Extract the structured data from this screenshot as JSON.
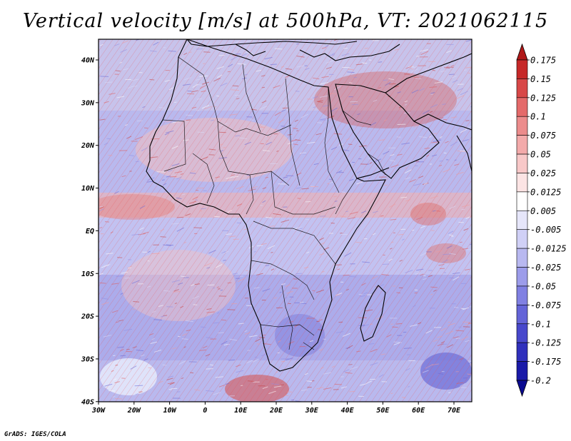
{
  "title": "Vertical velocity [m/s] at 500hPa, VT: 2021062115",
  "footer": "GrADS: IGES/COLA",
  "map": {
    "lat_labels": [
      "40N",
      "30N",
      "20N",
      "10N",
      "EQ",
      "10S",
      "20S",
      "30S",
      "40S"
    ],
    "lon_labels": [
      "30W",
      "20W",
      "10W",
      "0",
      "10E",
      "20E",
      "30E",
      "40E",
      "50E",
      "60E",
      "70E"
    ],
    "lon_range": [
      -30,
      75
    ],
    "lat_range": [
      -40,
      45
    ]
  },
  "colorbar": {
    "labels": [
      "0.175",
      "0.15",
      "0.125",
      "0.1",
      "0.075",
      "0.05",
      "0.025",
      "0.0125",
      "0.005",
      "-0.005",
      "-0.0125",
      "-0.025",
      "-0.05",
      "-0.075",
      "-0.1",
      "-0.125",
      "-0.175",
      "-0.2"
    ],
    "colors": [
      "#b01818",
      "#c62828",
      "#d84848",
      "#e46a6a",
      "#ec8c8c",
      "#f3aaaa",
      "#f8c8c8",
      "#fce4e4",
      "#ffffff",
      "#e6e6fa",
      "#d0d0f6",
      "#b8b8f0",
      "#9c9cea",
      "#8080e2",
      "#6464d8",
      "#4848cc",
      "#3030bc",
      "#1a1aa8",
      "#0a0a90"
    ]
  }
}
